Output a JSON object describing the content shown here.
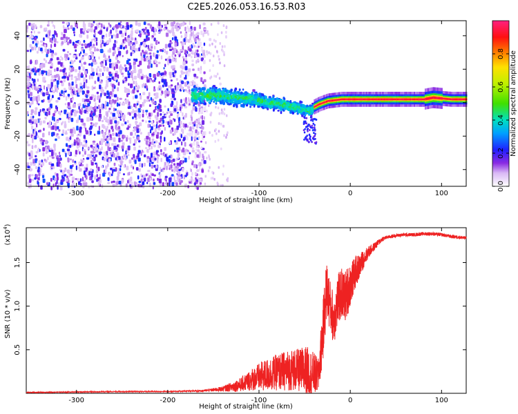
{
  "title": "C2E5.2026.053.16.53.R03",
  "chart_data": [
    {
      "type": "heatmap",
      "name": "spectrogram",
      "xlabel": "Height of straight line (km)",
      "ylabel": "Frequency (Hz)",
      "xlim": [
        -355,
        127
      ],
      "ylim": [
        -50,
        49
      ],
      "xticks": [
        -300,
        -200,
        -100,
        0,
        100
      ],
      "yticks": [
        -40,
        -20,
        0,
        20,
        40
      ],
      "colorbar": {
        "label": "Normalized spectral amplitude",
        "range": [
          0.0,
          1.0
        ],
        "ticks": [
          0.0,
          0.2,
          0.4,
          0.6,
          0.8
        ]
      },
      "regions": [
        {
          "name": "noise",
          "x": [
            -355,
            -160
          ],
          "freq": [
            -50,
            49
          ],
          "amplitude": "0.05-0.25"
        },
        {
          "name": "signal-spread",
          "x": [
            -175,
            -40
          ],
          "freq_center": [
            3,
            -3
          ],
          "amplitude": "0.2-0.5"
        },
        {
          "name": "signal-line",
          "x": [
            -40,
            127
          ],
          "freq_center": 2,
          "amplitude": "0.8-1.0"
        }
      ],
      "trace_points": [
        {
          "x": -170,
          "f": 5
        },
        {
          "x": -150,
          "f": 5
        },
        {
          "x": -130,
          "f": 4
        },
        {
          "x": -110,
          "f": 3
        },
        {
          "x": -90,
          "f": 1
        },
        {
          "x": -70,
          "f": -1
        },
        {
          "x": -55,
          "f": -3
        },
        {
          "x": -45,
          "f": -4
        },
        {
          "x": -35,
          "f": -1
        },
        {
          "x": -25,
          "f": 1
        },
        {
          "x": -10,
          "f": 2
        },
        {
          "x": 0,
          "f": 2
        },
        {
          "x": 20,
          "f": 2
        },
        {
          "x": 50,
          "f": 2
        },
        {
          "x": 80,
          "f": 2
        },
        {
          "x": 90,
          "f": 3
        },
        {
          "x": 110,
          "f": 2
        },
        {
          "x": 127,
          "f": 2
        }
      ]
    },
    {
      "type": "line",
      "name": "snr",
      "xlabel": "Height of straight line (km)",
      "ylabel": "SNR (10 * v/v)",
      "yscale_label": "(x10",
      "yscale_exponent": "4",
      "xlim": [
        -355,
        127
      ],
      "ylim": [
        0,
        1.9
      ],
      "xticks": [
        -300,
        -200,
        -100,
        0,
        100
      ],
      "yticks": [
        0.5,
        1.0,
        1.5
      ],
      "series": [
        {
          "name": "SNR",
          "color": "#ee2222",
          "x": [
            -355,
            -300,
            -250,
            -200,
            -160,
            -140,
            -120,
            -105,
            -95,
            -85,
            -75,
            -65,
            -55,
            -50,
            -45,
            -40,
            -35,
            -30,
            -26,
            -22,
            -18,
            -14,
            -10,
            -6,
            -2,
            2,
            6,
            10,
            15,
            20,
            25,
            30,
            35,
            40,
            50,
            60,
            70,
            80,
            90,
            100,
            110,
            120,
            127
          ],
          "y": [
            0.01,
            0.015,
            0.02,
            0.02,
            0.03,
            0.05,
            0.1,
            0.17,
            0.2,
            0.23,
            0.25,
            0.27,
            0.26,
            0.26,
            0.24,
            0.22,
            0.2,
            0.7,
            1.2,
            1.0,
            0.85,
            1.05,
            1.15,
            1.1,
            1.2,
            1.3,
            1.4,
            1.45,
            1.55,
            1.62,
            1.67,
            1.72,
            1.77,
            1.79,
            1.81,
            1.82,
            1.82,
            1.83,
            1.83,
            1.82,
            1.8,
            1.79,
            1.78
          ],
          "noise": [
            0.004,
            0.004,
            0.005,
            0.005,
            0.01,
            0.03,
            0.08,
            0.14,
            0.18,
            0.2,
            0.22,
            0.24,
            0.25,
            0.3,
            0.28,
            0.25,
            0.2,
            0.35,
            0.35,
            0.3,
            0.3,
            0.3,
            0.3,
            0.3,
            0.28,
            0.22,
            0.18,
            0.15,
            0.1,
            0.07,
            0.05,
            0.04,
            0.03,
            0.02,
            0.02,
            0.02,
            0.02,
            0.02,
            0.02,
            0.02,
            0.02,
            0.02,
            0.02
          ]
        }
      ]
    }
  ]
}
